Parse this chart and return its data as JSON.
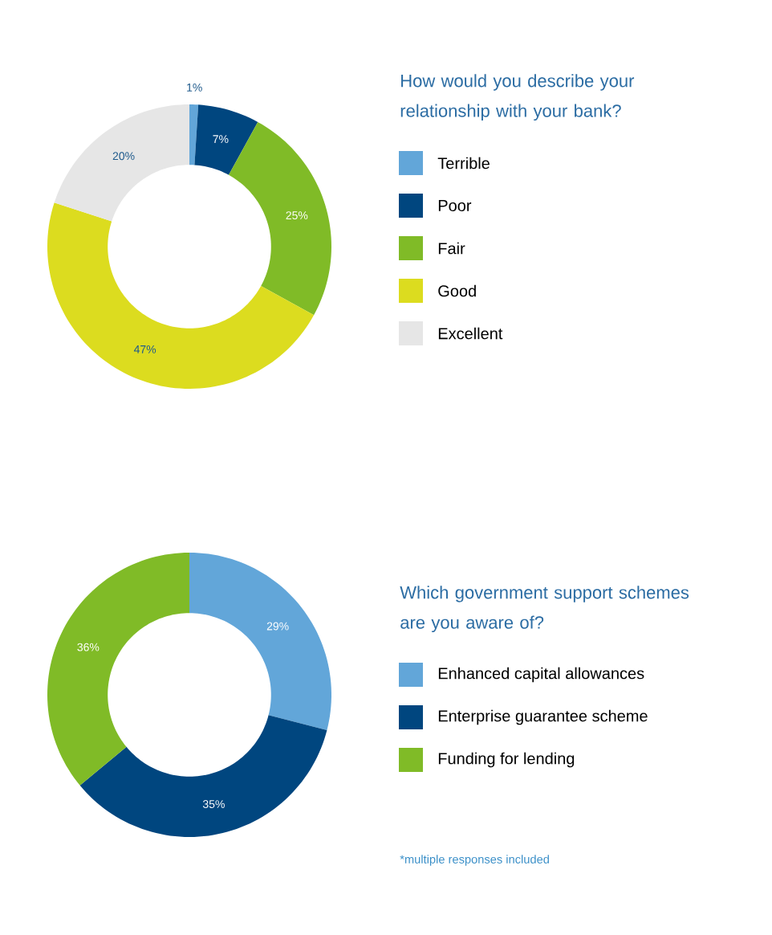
{
  "chart_data": [
    {
      "type": "donut",
      "title": "How would you describe your relationship with your bank?",
      "categories": [
        "Terrible",
        "Poor",
        "Fair",
        "Good",
        "Excellent"
      ],
      "values": [
        1,
        7,
        25,
        47,
        20
      ],
      "value_labels": [
        "1%",
        "7%",
        "25%",
        "47%",
        "20%"
      ],
      "colors": [
        "#62a6d9",
        "#00467f",
        "#80bb27",
        "#dcdc1f",
        "#e6e6e6"
      ],
      "legend": "right"
    },
    {
      "type": "donut",
      "title": "Which government support schemes are you aware of?",
      "categories": [
        "Enhanced capital allowances",
        "Enterprise guarantee scheme",
        "Funding for lending"
      ],
      "values": [
        29,
        35,
        36
      ],
      "value_labels": [
        "29%",
        "35%",
        "36%"
      ],
      "colors": [
        "#62a6d9",
        "#00467f",
        "#80bb27"
      ],
      "legend": "right",
      "annotations": [
        "*multiple responses included"
      ]
    }
  ]
}
